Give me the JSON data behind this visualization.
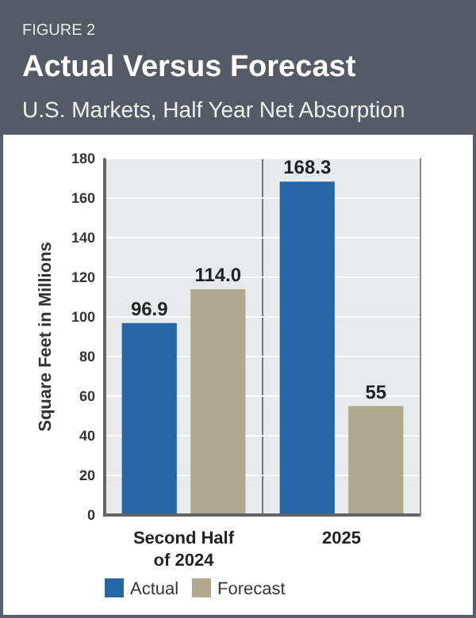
{
  "chart_data": {
    "type": "bar",
    "title": "Actual Versus Forecast",
    "subtitle": "U.S. Markets, Half Year Net Absorption",
    "annotations": [
      "FIGURE 2"
    ],
    "ylabel": "Square Feet in Millions",
    "categories": [
      "Second Half of 2024",
      "2025"
    ],
    "series": [
      {
        "name": "Actual",
        "color": "#2466a6",
        "values": [
          96.9,
          168.3
        ],
        "value_labels": [
          "96.9",
          "168.3"
        ]
      },
      {
        "name": "Forecast",
        "color": "#b0a88f",
        "values": [
          114.0,
          55
        ],
        "value_labels": [
          "114.0",
          "55"
        ]
      }
    ],
    "ylim": [
      0,
      180
    ],
    "yticks": [
      0,
      20,
      40,
      60,
      80,
      100,
      120,
      140,
      160,
      180
    ],
    "grid": "y",
    "legend": "bottom"
  }
}
